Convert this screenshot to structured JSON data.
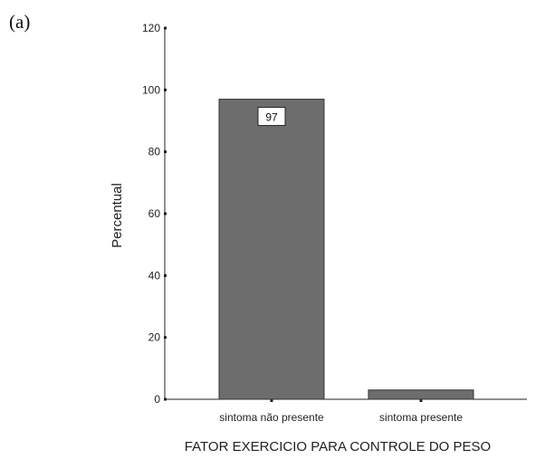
{
  "panel_label": "(a)",
  "chart_data": {
    "type": "bar",
    "categories": [
      "sintoma não presente",
      "sintoma presente"
    ],
    "values": [
      97,
      3
    ],
    "data_labels": [
      "97",
      ""
    ],
    "title": "",
    "xlabel": "FATOR EXERCICIO PARA CONTROLE DO PESO",
    "ylabel": "Percentual",
    "ylim": [
      0,
      120
    ],
    "yticks": [
      0,
      20,
      40,
      60,
      80,
      100,
      120
    ],
    "bar_color": "#6d6d6d",
    "grid": false
  }
}
